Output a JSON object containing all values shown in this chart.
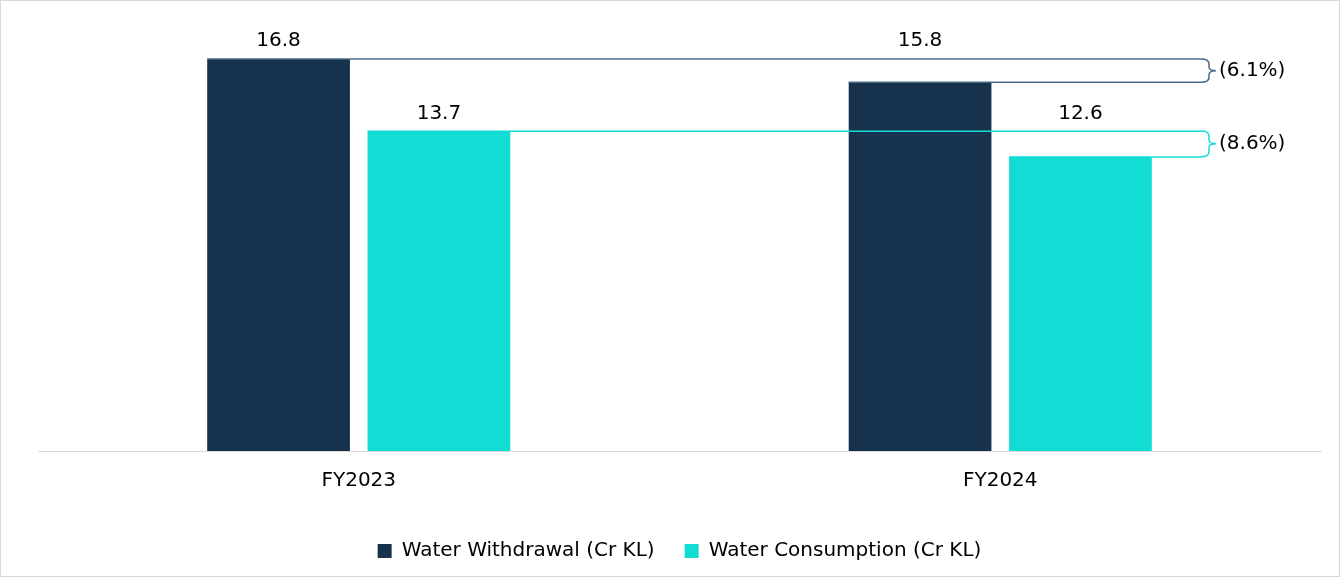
{
  "chart_data": {
    "type": "bar",
    "categories": [
      "FY2023",
      "FY2024"
    ],
    "series": [
      {
        "name": "Water Withdrawal (Cr KL)",
        "color": "#17324d",
        "values": [
          16.8,
          15.8
        ]
      },
      {
        "name": "Water Consumption (Cr KL)",
        "color": "#12dcd4",
        "values": [
          13.7,
          12.6
        ]
      }
    ],
    "ref_lines": [
      {
        "axis": "y",
        "value": 16.8,
        "color": "#4a6a8a"
      },
      {
        "axis": "y",
        "value": 15.8,
        "color": "#4a6a8a"
      },
      {
        "axis": "y",
        "value": 13.7,
        "color": "#12dcd4"
      },
      {
        "axis": "y",
        "value": 12.6,
        "color": "#12dcd4"
      }
    ],
    "data_labels": true,
    "grid": false,
    "legend": "bottom",
    "tick_labels": "x",
    "annotations": [
      "(6.1%)",
      "(8.6%)"
    ]
  }
}
